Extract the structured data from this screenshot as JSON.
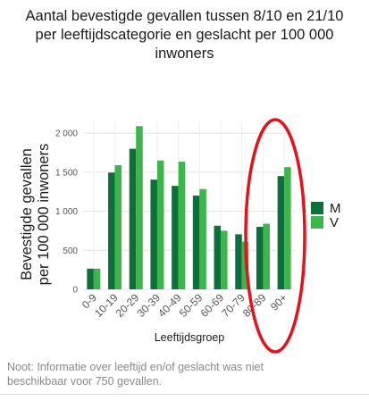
{
  "chart_data": {
    "type": "bar",
    "title_lines": [
      "Aantal bevestigde gevallen tussen 8/10 en 21/10",
      "per leeftijdscategorie en geslacht per 100 000",
      "inwoners"
    ],
    "xlabel": "Leeftijdsgroep",
    "ylabel_lines": [
      "Bevestigde gevallen",
      "per 100 000 inwoners"
    ],
    "categories": [
      "0-9",
      "10-19",
      "20-29",
      "30-39",
      "40-49",
      "50-59",
      "60-69",
      "70-79",
      "80-89",
      "90+"
    ],
    "series": [
      {
        "name": "M",
        "color": "#0e6e3c",
        "values": [
          265,
          1495,
          1800,
          1405,
          1325,
          1200,
          815,
          705,
          800,
          1450
        ]
      },
      {
        "name": "V",
        "color": "#3cb54a",
        "values": [
          265,
          1590,
          2090,
          1650,
          1635,
          1285,
          750,
          610,
          840,
          1565
        ]
      }
    ],
    "ylim": [
      0,
      2150
    ],
    "yticks": [
      0,
      500,
      1000,
      1500,
      2000
    ],
    "ytick_labels": [
      "0",
      "500",
      "1 000",
      "1 500",
      "2 000"
    ],
    "grid": true,
    "legend_position": "right",
    "annotation": {
      "type": "ellipse",
      "color": "#e3131b",
      "around_categories": [
        "80-89",
        "90+"
      ]
    }
  },
  "note_lines": [
    "Noot: Informatie over leeftijd en/of geslacht was niet",
    "beschikbaar voor 750 gevallen."
  ]
}
